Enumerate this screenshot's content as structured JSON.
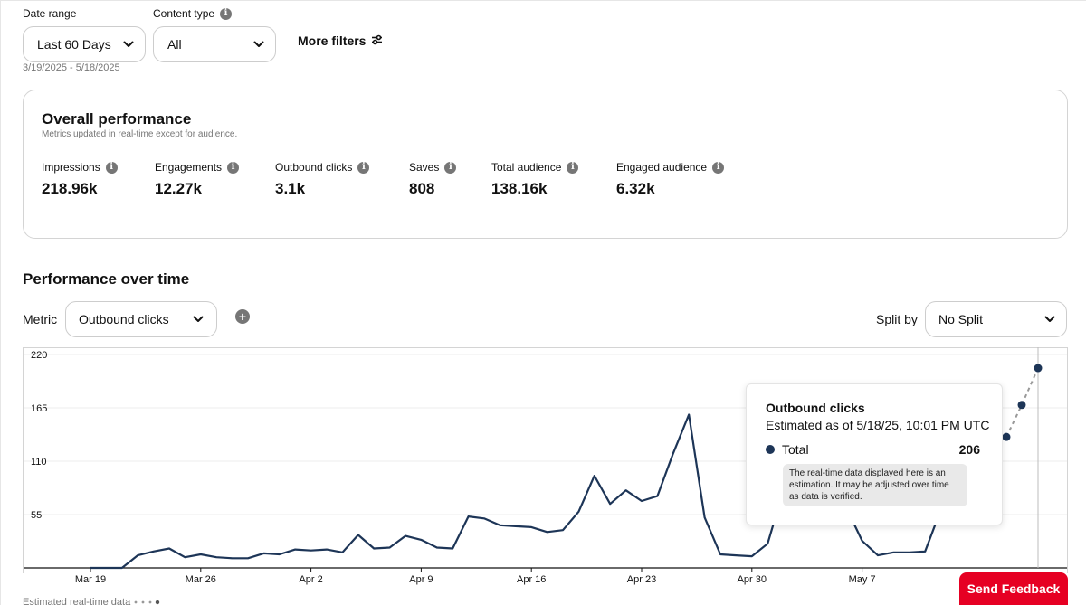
{
  "filters": {
    "date_range_label": "Date range",
    "date_range_value": "Last 60 Days",
    "date_range_sub": "3/19/2025 - 5/18/2025",
    "content_type_label": "Content type",
    "content_type_value": "All",
    "more_filters": "More filters"
  },
  "overall": {
    "title": "Overall performance",
    "subtitle": "Metrics updated in real-time except for audience.",
    "metrics": [
      {
        "label": "Impressions",
        "value": "218.96k"
      },
      {
        "label": "Engagements",
        "value": "12.27k"
      },
      {
        "label": "Outbound clicks",
        "value": "3.1k"
      },
      {
        "label": "Saves",
        "value": "808"
      },
      {
        "label": "Total audience",
        "value": "138.16k"
      },
      {
        "label": "Engaged audience",
        "value": "6.32k"
      }
    ]
  },
  "performance": {
    "title": "Performance over time",
    "metric_label": "Metric",
    "metric_value": "Outbound clicks",
    "split_label": "Split by",
    "split_value": "No Split"
  },
  "tooltip": {
    "title": "Outbound clicks",
    "subtitle": "Estimated as of 5/18/25, 10:01 PM UTC",
    "series_name": "Total",
    "series_value": "206",
    "note": "The real-time data displayed here is an estimation. It may be adjusted over time as data is verified."
  },
  "estimated_label": "Estimated real-time data",
  "feedback_button": "Send Feedback",
  "colors": {
    "line": "#1d3557",
    "accent": "#e60023"
  },
  "chart_data": {
    "type": "line",
    "title": "",
    "xlabel": "",
    "ylabel": "",
    "ylim": [
      0,
      220
    ],
    "y_ticks": [
      0,
      55,
      110,
      165,
      220
    ],
    "x_tick_labels": [
      "Mar 19",
      "Mar 26",
      "Apr 2",
      "Apr 9",
      "Apr 16",
      "Apr 23",
      "Apr 30",
      "May 7"
    ],
    "start_label": "Mar 19",
    "values": [
      0,
      0,
      0,
      13,
      17,
      20,
      11,
      14,
      11,
      10,
      10,
      15,
      14,
      19,
      18,
      19,
      16,
      34,
      20,
      21,
      33,
      29,
      21,
      20,
      53,
      51,
      44,
      43,
      42,
      37,
      39,
      58,
      95,
      66,
      80,
      69,
      74,
      118,
      158,
      52,
      14,
      13,
      12,
      25,
      80,
      112,
      110,
      122,
      62,
      28,
      13,
      16,
      16,
      17,
      60,
      110,
      120,
      130
    ],
    "estimated_values": [
      135,
      168,
      206
    ]
  }
}
